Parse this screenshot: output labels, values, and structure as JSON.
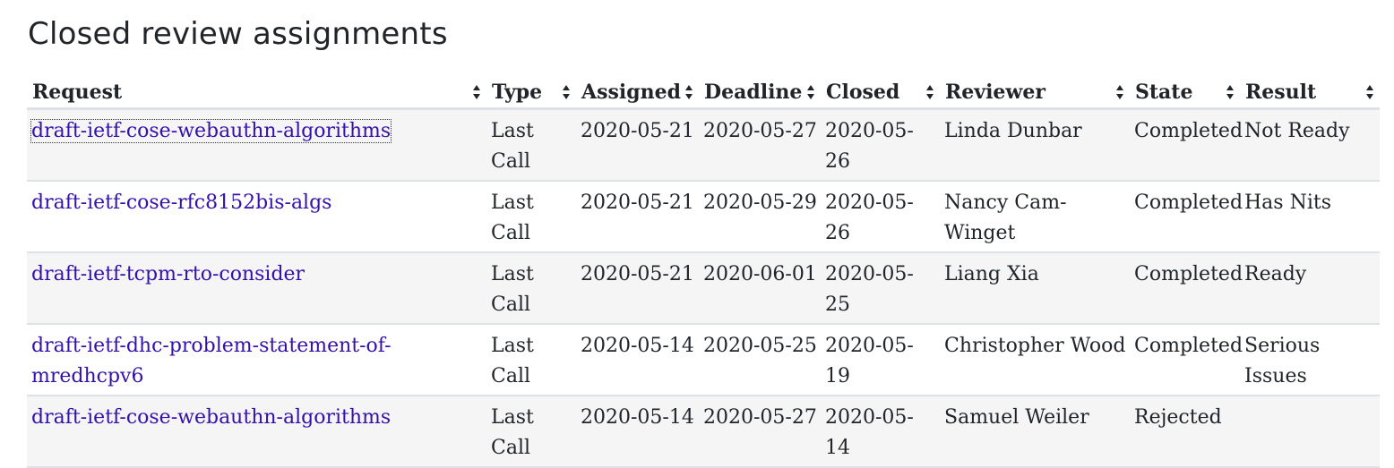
{
  "section_title": "Closed review assignments",
  "columns": [
    "Request",
    "Type",
    "Assigned",
    "Deadline",
    "Closed",
    "Reviewer",
    "State",
    "Result"
  ],
  "rows": [
    {
      "request": "draft-ietf-cose-webauthn-algorithms",
      "type": "Last Call",
      "assigned": "2020-05-21",
      "deadline": "2020-05-27",
      "closed": "2020-05-26",
      "reviewer": "Linda Dunbar",
      "state": "Completed",
      "result": "Not Ready"
    },
    {
      "request": "draft-ietf-cose-rfc8152bis-algs",
      "type": "Last Call",
      "assigned": "2020-05-21",
      "deadline": "2020-05-29",
      "closed": "2020-05-26",
      "reviewer": "Nancy Cam-Winget",
      "state": "Completed",
      "result": "Has Nits"
    },
    {
      "request": "draft-ietf-tcpm-rto-consider",
      "type": "Last Call",
      "assigned": "2020-05-21",
      "deadline": "2020-06-01",
      "closed": "2020-05-25",
      "reviewer": "Liang Xia",
      "state": "Completed",
      "result": "Ready"
    },
    {
      "request": "draft-ietf-dhc-problem-statement-of-mredhcpv6",
      "type": "Last Call",
      "assigned": "2020-05-14",
      "deadline": "2020-05-25",
      "closed": "2020-05-19",
      "reviewer": "Christopher Wood",
      "state": "Completed",
      "result": "Serious Issues"
    },
    {
      "request": "draft-ietf-cose-webauthn-algorithms",
      "type": "Last Call",
      "assigned": "2020-05-14",
      "deadline": "2020-05-27",
      "closed": "2020-05-14",
      "reviewer": "Samuel Weiler",
      "state": "Rejected",
      "result": ""
    }
  ],
  "colors": {
    "link": "#3311aa",
    "row_stripe": "#f5f5f5",
    "border": "#dee2e6"
  }
}
